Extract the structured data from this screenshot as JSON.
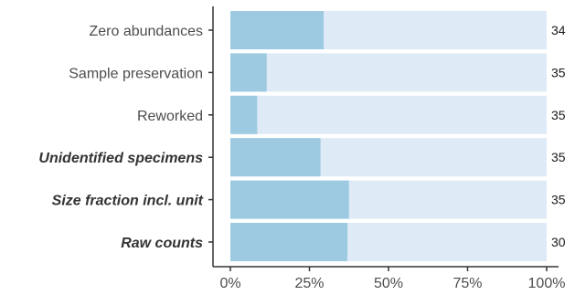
{
  "chart_data": {
    "type": "bar",
    "orientation": "horizontal",
    "stacked_percent": true,
    "categories": [
      "Zero abundances",
      "Sample preservation",
      "Reworked",
      "Unidentified specimens",
      "Size fraction incl. unit",
      "Raw counts"
    ],
    "emphasized_categories": [
      "Unidentified specimens",
      "Size fraction incl. unit",
      "Raw counts"
    ],
    "values": [
      0.295,
      0.115,
      0.085,
      0.285,
      0.375,
      0.37
    ],
    "counts": [
      "34",
      "35",
      "35",
      "35",
      "35",
      "30"
    ],
    "xlim": [
      0,
      1
    ],
    "xticks": [
      0,
      0.25,
      0.5,
      0.75,
      1
    ],
    "xtick_labels": [
      "0%",
      "25%",
      "50%",
      "75%",
      "100%"
    ],
    "colors": {
      "filled": "#9ecae1",
      "remainder": "#deebf7",
      "axis": "#333333"
    },
    "grid": false
  }
}
